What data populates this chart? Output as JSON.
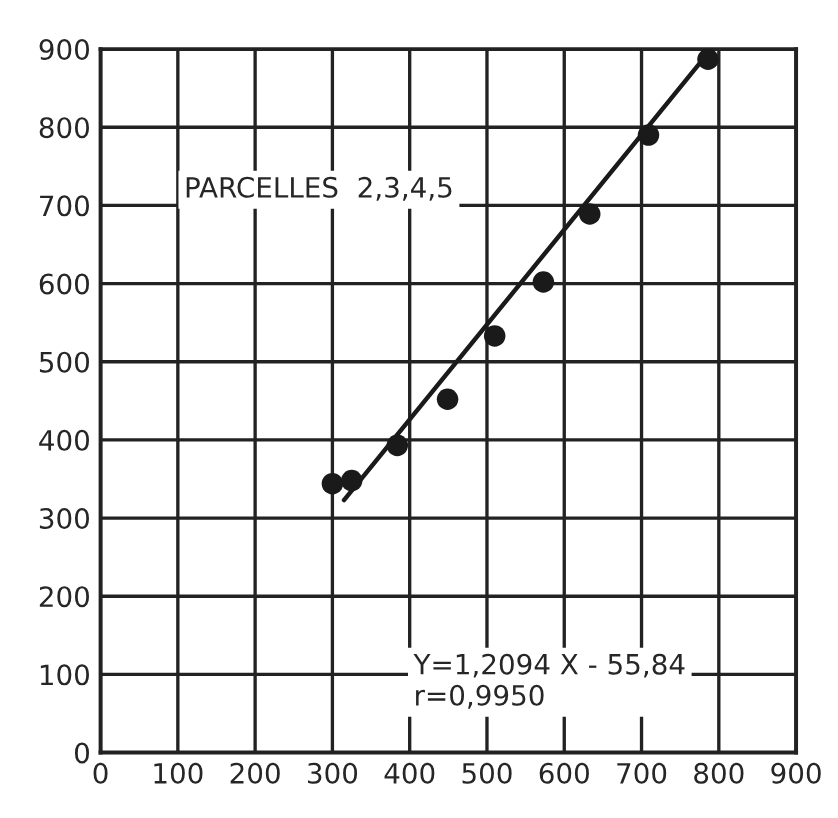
{
  "chart_data": {
    "type": "scatter",
    "series": [
      {
        "color": "#1a1a1a",
        "marker": "circle",
        "x": [
          300,
          325,
          384,
          449,
          510,
          573,
          633,
          709,
          786
        ],
        "values": [
          344,
          348,
          393,
          452,
          533,
          602,
          689,
          790,
          887
        ]
      },
      {
        "type": "line",
        "color": "#1a1a1a",
        "line_style": "solid",
        "x": [
          315,
          787
        ],
        "values": [
          323,
          896
        ]
      }
    ],
    "xlim": [
      0,
      900
    ],
    "ylim": [
      0,
      900
    ],
    "xticks": [
      0,
      100,
      200,
      300,
      400,
      500,
      600,
      700,
      800,
      900
    ],
    "yticks": [
      0,
      100,
      200,
      300,
      400,
      500,
      600,
      700,
      800,
      900
    ],
    "grid": true,
    "annotations": [
      "PARCELLES  2,3,4,5",
      "Y=1,2094 X - 55,84\nr=0,9950"
    ]
  }
}
